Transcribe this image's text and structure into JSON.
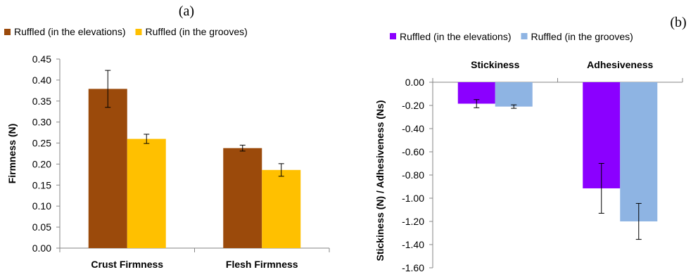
{
  "chart_data": [
    {
      "type": "bar",
      "panel_label": "(a)",
      "categories": [
        "Crust Firmness",
        "Flesh Firmness"
      ],
      "series": [
        {
          "name": "Ruffled (in the elevations)",
          "color": "#9B4A0B",
          "values": [
            0.379,
            0.238
          ],
          "errors": [
            0.044,
            0.007
          ]
        },
        {
          "name": "Ruffled (in the grooves)",
          "color": "#FFC000",
          "values": [
            0.26,
            0.186
          ],
          "errors": [
            0.011,
            0.015
          ]
        }
      ],
      "ylabel": "Firmness (N)",
      "ylim": [
        0,
        0.45
      ],
      "yticks": [
        0.0,
        0.05,
        0.1,
        0.15,
        0.2,
        0.25,
        0.3,
        0.35,
        0.4,
        0.45
      ],
      "ytick_labels": [
        "0.00",
        "0.05",
        "0.10",
        "0.15",
        "0.20",
        "0.25",
        "0.30",
        "0.35",
        "0.40",
        "0.45"
      ],
      "legend_position": "top",
      "grid": false
    },
    {
      "type": "bar",
      "panel_label": "(b)",
      "categories": [
        "Stickiness",
        "Adhesiveness"
      ],
      "series": [
        {
          "name": "Ruffled (in the elevations)",
          "color": "#8B00FF",
          "values": [
            -0.185,
            -0.915
          ],
          "errors": [
            0.035,
            0.215
          ]
        },
        {
          "name": "Ruffled (in the grooves)",
          "color": "#8EB4E3",
          "values": [
            -0.21,
            -1.2
          ],
          "errors": [
            0.015,
            0.155
          ]
        }
      ],
      "ylabel": "Stickiness (N) / Adhesiveness (Ns)",
      "ylim": [
        -1.6,
        0
      ],
      "yticks": [
        0.0,
        -0.2,
        -0.4,
        -0.6,
        -0.8,
        -1.0,
        -1.2,
        -1.4,
        -1.6
      ],
      "ytick_labels": [
        "0.00",
        "-0.20",
        "-0.40",
        "-0.60",
        "-0.80",
        "-1.00",
        "-1.20",
        "-1.40",
        "-1.60"
      ],
      "legend_position": "top",
      "category_label_position": "top",
      "grid": false
    }
  ]
}
